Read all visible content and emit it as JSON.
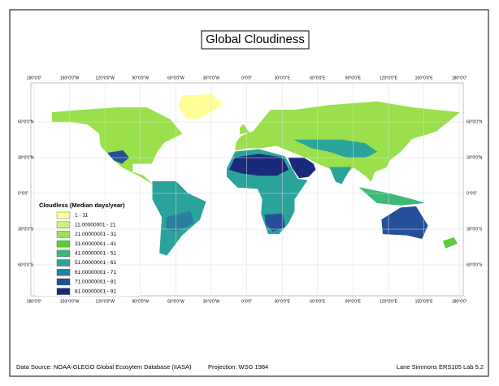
{
  "title": "Global Cloudiness",
  "graticule": {
    "longitudes": [
      "180°0'0\"",
      "150°0'0\"W",
      "120°0'0\"W",
      "90°0'0\"W",
      "60°0'0\"W",
      "30°0'0\"W",
      "0°0'0\"",
      "30°0'0\"E",
      "60°0'0\"E",
      "90°0'0\"E",
      "120°0'0\"E",
      "150°0'0\"E",
      "180°0'0\""
    ],
    "latitudes": [
      "60°0'0\"N",
      "30°0'0\"N",
      "0°0'0\"",
      "30°0'0\"S",
      "60°0'0\"S"
    ]
  },
  "legend": {
    "title": "Cloudless (Median days/year)",
    "items": [
      {
        "label": "1 - 11",
        "color": "#ffff99"
      },
      {
        "label": "11.00000001 - 21",
        "color": "#ccf07a"
      },
      {
        "label": "21.00000001 - 31",
        "color": "#99e04c"
      },
      {
        "label": "31.00000001 - 41",
        "color": "#5dcc3a"
      },
      {
        "label": "41.00000001 - 51",
        "color": "#3cb878"
      },
      {
        "label": "51.00000001 - 61",
        "color": "#2aa39a"
      },
      {
        "label": "61.00000001 - 71",
        "color": "#2a7fa0"
      },
      {
        "label": "71.00000001 - 81",
        "color": "#24509a"
      },
      {
        "label": "81.00000001 - 91",
        "color": "#1a2a7a"
      }
    ]
  },
  "footer": {
    "source": "Data Source: NOAA-GLEGO Global Ecosytem Database (IIASA)",
    "projection": "Projection: WSG 1984",
    "author": "Lane Simmons ERS105 Lab 5.2"
  }
}
